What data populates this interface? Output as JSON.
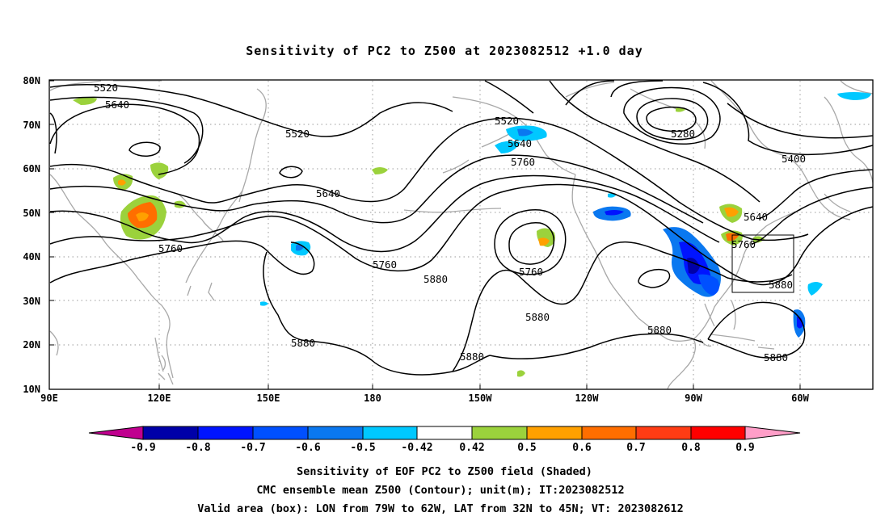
{
  "title": "Sensitivity of PC2 to Z500 at 2023082512 +1.0 day",
  "map": {
    "lon_labels": [
      "90E",
      "120E",
      "150E",
      "180",
      "150W",
      "120W",
      "90W",
      "60W"
    ],
    "lat_labels": [
      "80N",
      "70N",
      "60N",
      "50N",
      "40N",
      "30N",
      "20N",
      "10N"
    ],
    "contour_labels": [
      "5520",
      "5640",
      "5520",
      "5640",
      "5760",
      "5520",
      "5640",
      "5760",
      "5760",
      "5880",
      "5760",
      "5880",
      "5880",
      "5880",
      "5280",
      "5400",
      "5640",
      "5760",
      "5880",
      "5880",
      "5880"
    ],
    "box": {
      "lon": [
        -79,
        -62
      ],
      "lat": [
        32,
        45
      ]
    }
  },
  "colorbar": {
    "labels": [
      "-0.9",
      "-0.8",
      "-0.7",
      "-0.6",
      "-0.5",
      "-0.42",
      "0.42",
      "0.5",
      "0.6",
      "0.7",
      "0.8",
      "0.9"
    ],
    "colors": [
      "#c0008f",
      "#0000a8",
      "#0014ff",
      "#0050ff",
      "#0a78f0",
      "#00c8ff",
      "#ffffff",
      "#9bd23c",
      "#ffa000",
      "#ff6e00",
      "#ff3c14",
      "#ff0000",
      "#ff9ec8"
    ]
  },
  "caption": {
    "line1": "Sensitivity of EOF PC2 to Z500 field (Shaded)",
    "line2": "CMC ensemble mean Z500 (Contour); unit(m); IT:2023082512",
    "line3": "Valid area (box): LON from 79W to 62W, LAT from 32N to 45N; VT: 2023082612"
  }
}
